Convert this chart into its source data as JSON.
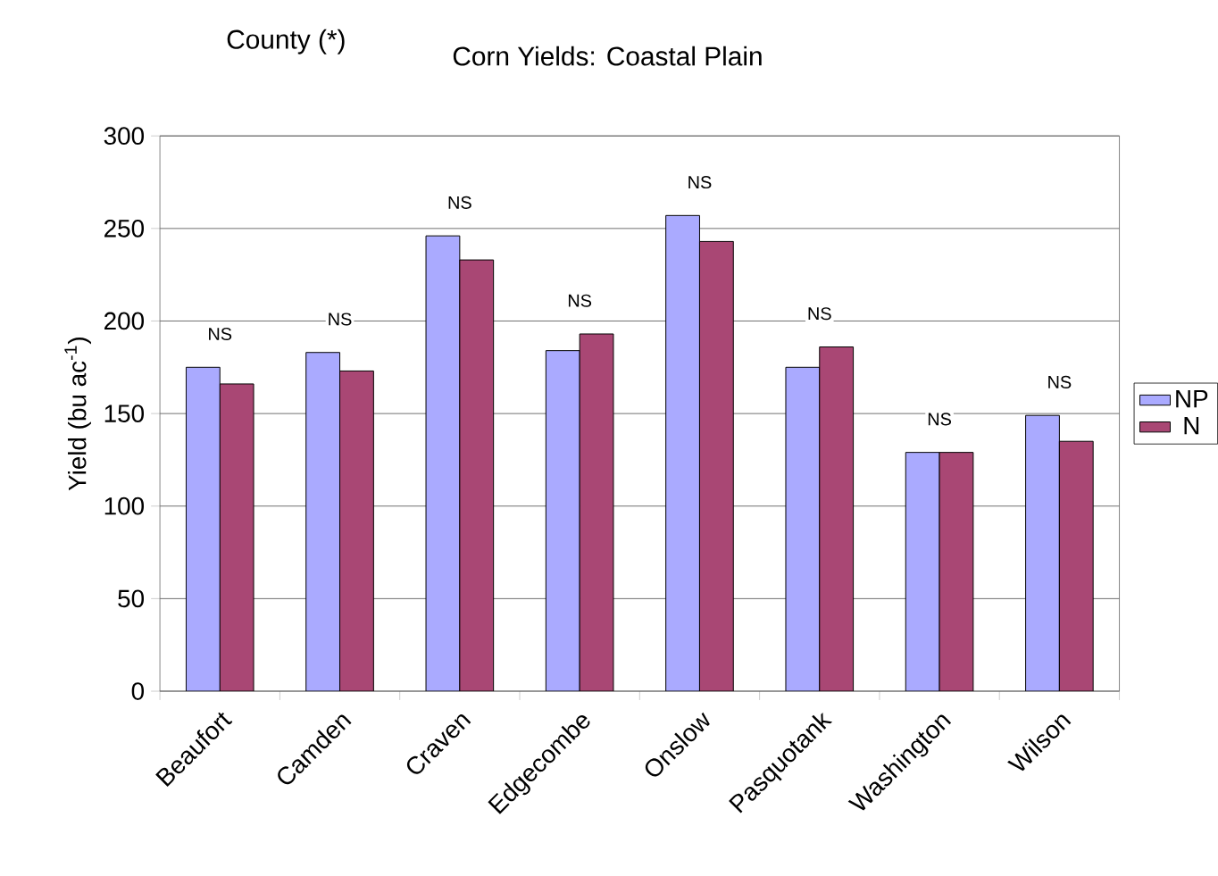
{
  "chart_data": {
    "type": "bar",
    "title": "Corn Yields: Coastal Plain",
    "ylabel": "Yield (bu ac$^{-1}$)",
    "categories": [
      "Beaufort",
      "Camden",
      "Craven",
      "Edgecombe",
      "Onslow",
      "Pasquotank",
      "Washington",
      "Wilson"
    ],
    "series": [
      {
        "name": "NP",
        "color": "#aaaaff",
        "values": [
          175,
          183,
          246,
          184,
          257,
          175,
          129,
          149
        ]
      },
      {
        "name": "N",
        "color": "#a94774",
        "values": [
          166,
          173,
          233,
          193,
          243,
          186,
          129,
          135
        ]
      }
    ],
    "ylim": [
      0,
      300
    ],
    "yticks": [
      0,
      50,
      100,
      150,
      200,
      250,
      300
    ],
    "grid": "y",
    "legend": "right",
    "annotations": [
      "County (*)",
      "NS",
      "NS",
      "NS",
      "NS",
      "NS",
      "NS",
      "NS",
      "NS"
    ]
  }
}
